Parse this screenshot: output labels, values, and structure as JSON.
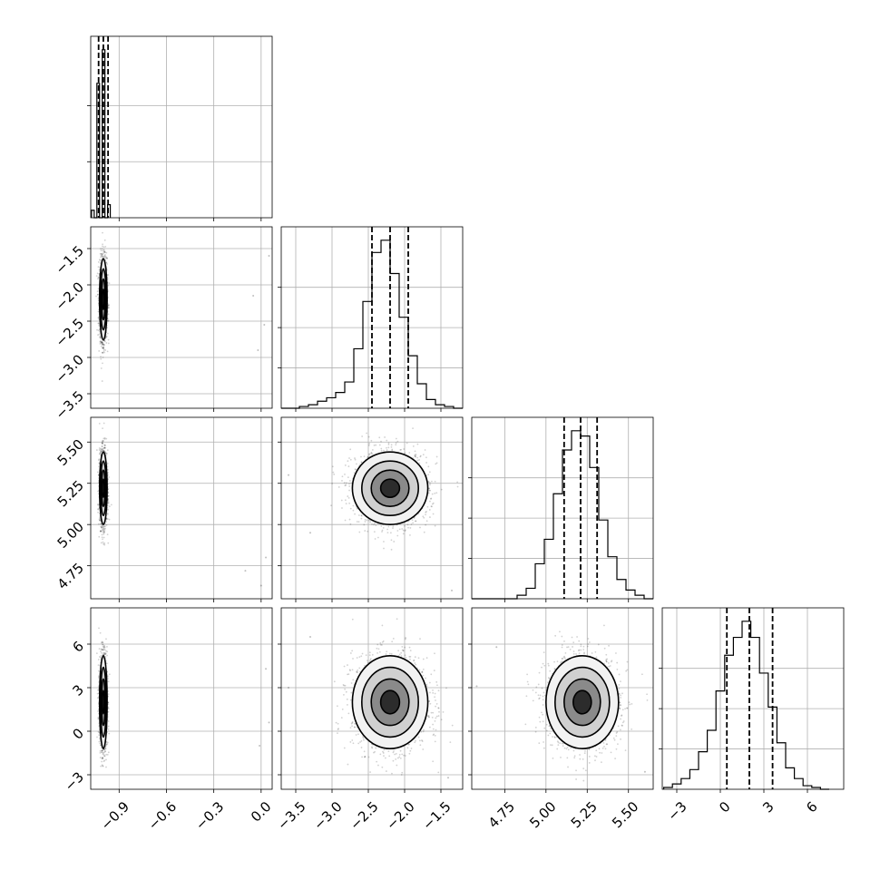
{
  "chart_data": {
    "type": "corner",
    "grid": true,
    "parameters": [
      {
        "id": "p0",
        "range": [
          -1.08,
          0.07
        ],
        "ticks": [
          -0.9,
          -0.6,
          -0.3,
          0.0
        ],
        "tick_labels": [
          "−0.9",
          "−0.6",
          "−0.3",
          "0.0"
        ],
        "hist_ticks": [
          0.3333,
          0.6667
        ],
        "hist": {
          "edges": [
            -1.075,
            -1.058,
            -1.041,
            -1.024,
            -1.007,
            -0.99,
            -0.973,
            -0.956
          ],
          "counts": [
            0.04,
            0.0,
            0.72,
            0.0,
            0.9,
            0.0,
            0.07
          ]
        },
        "quantiles": [
          -1.03,
          -1.0,
          -0.97
        ]
      },
      {
        "id": "p1",
        "range": [
          -3.7,
          -1.2
        ],
        "ticks": [
          -3.5,
          -3.0,
          -2.5,
          -2.0,
          -1.5
        ],
        "tick_labels": [
          "−3.5",
          "−3.0",
          "−2.5",
          "−2.0",
          "−1.5"
        ],
        "hist_ticks": [
          0.24,
          0.48,
          0.72
        ],
        "hist": {
          "edges": [
            -3.7,
            -3.575,
            -3.45,
            -3.325,
            -3.2,
            -3.075,
            -2.95,
            -2.825,
            -2.7,
            -2.575,
            -2.45,
            -2.325,
            -2.2,
            -2.075,
            -1.95,
            -1.825,
            -1.7,
            -1.575,
            -1.45,
            -1.325,
            -1.2
          ],
          "counts": [
            0.0,
            0.0,
            0.01,
            0.02,
            0.04,
            0.06,
            0.09,
            0.15,
            0.34,
            0.61,
            0.89,
            0.96,
            0.77,
            0.52,
            0.3,
            0.14,
            0.05,
            0.02,
            0.01,
            0.0
          ]
        },
        "quantiles": [
          -2.45,
          -2.2,
          -1.95
        ]
      },
      {
        "id": "p2",
        "range": [
          4.55,
          5.65
        ],
        "ticks": [
          4.75,
          5.0,
          5.25,
          5.5
        ],
        "tick_labels": [
          "4.75",
          "5.00",
          "5.25",
          "5.50"
        ],
        "hist_ticks": [
          0.24,
          0.48,
          0.72
        ],
        "hist": {
          "edges": [
            4.55,
            4.605,
            4.66,
            4.715,
            4.77,
            4.825,
            4.88,
            4.935,
            4.99,
            5.045,
            5.1,
            5.155,
            5.21,
            5.265,
            5.32,
            5.375,
            5.43,
            5.485,
            5.54,
            5.595,
            5.65
          ],
          "counts": [
            0.0,
            0.0,
            0.0,
            0.0,
            0.0,
            0.02,
            0.06,
            0.2,
            0.34,
            0.6,
            0.85,
            0.96,
            0.93,
            0.75,
            0.45,
            0.24,
            0.11,
            0.05,
            0.02,
            0.0
          ]
        },
        "quantiles": [
          5.11,
          5.21,
          5.31
        ]
      },
      {
        "id": "p3",
        "range": [
          -4.0,
          8.5
        ],
        "ticks": [
          -3,
          0,
          3,
          6
        ],
        "tick_labels": [
          "−3",
          "0",
          "3",
          "6"
        ],
        "hist_ticks": [
          0.24,
          0.48,
          0.72
        ],
        "hist": {
          "edges": [
            -3.9,
            -3.3,
            -2.7,
            -2.1,
            -1.5,
            -0.9,
            -0.3,
            0.3,
            0.9,
            1.5,
            2.1,
            2.7,
            3.3,
            3.9,
            4.5,
            5.1,
            5.7,
            6.3,
            6.9,
            7.5
          ],
          "counts": [
            0.01,
            0.03,
            0.06,
            0.11,
            0.21,
            0.33,
            0.55,
            0.75,
            0.85,
            0.94,
            0.85,
            0.65,
            0.46,
            0.26,
            0.12,
            0.06,
            0.02,
            0.01,
            0.0
          ]
        },
        "quantiles": [
          0.45,
          2.0,
          3.6
        ]
      }
    ],
    "scatter_panels": [
      {
        "x": 0,
        "y": 1,
        "center": [
          -1.0,
          -2.2
        ],
        "sd": [
          0.012,
          0.28
        ],
        "rho": 0.0,
        "outliers": [
          [
            -0.05,
            -2.15
          ],
          [
            -0.02,
            -2.9
          ],
          [
            0.02,
            -2.55
          ],
          [
            0.05,
            -1.6
          ]
        ]
      },
      {
        "x": 0,
        "y": 2,
        "center": [
          -1.0,
          5.22
        ],
        "sd": [
          0.012,
          0.11
        ],
        "rho": 0.0,
        "outliers": [
          [
            -0.1,
            4.72
          ],
          [
            0.0,
            4.63
          ],
          [
            0.03,
            4.8
          ]
        ]
      },
      {
        "x": 1,
        "y": 2,
        "center": [
          -2.2,
          5.22
        ],
        "sd": [
          0.26,
          0.11
        ],
        "rho": 0.0,
        "outliers": [
          [
            -3.6,
            5.3
          ],
          [
            -1.35,
            4.6
          ],
          [
            -3.3,
            4.95
          ]
        ]
      },
      {
        "x": 0,
        "y": 3,
        "center": [
          -1.0,
          2.0
        ],
        "sd": [
          0.012,
          1.6
        ],
        "rho": 0.0,
        "outliers": [
          [
            0.03,
            4.3
          ],
          [
            -0.01,
            -1.0
          ],
          [
            0.05,
            0.6
          ]
        ]
      },
      {
        "x": 1,
        "y": 3,
        "center": [
          -2.2,
          2.0
        ],
        "sd": [
          0.26,
          1.6
        ],
        "rho": 0.0,
        "outliers": [
          [
            -3.6,
            3.0
          ],
          [
            -1.4,
            -3.2
          ],
          [
            -3.3,
            6.5
          ]
        ]
      },
      {
        "x": 2,
        "y": 3,
        "center": [
          5.22,
          2.0
        ],
        "sd": [
          0.11,
          1.6
        ],
        "rho": 0.0,
        "outliers": [
          [
            4.58,
            3.1
          ],
          [
            5.6,
            -2.8
          ],
          [
            4.7,
            5.8
          ]
        ]
      }
    ],
    "contour_levels_sigma": [
      0.5,
      1.0,
      1.5,
      2.0
    ],
    "title": "",
    "xlabel": "",
    "ylabel": ""
  }
}
